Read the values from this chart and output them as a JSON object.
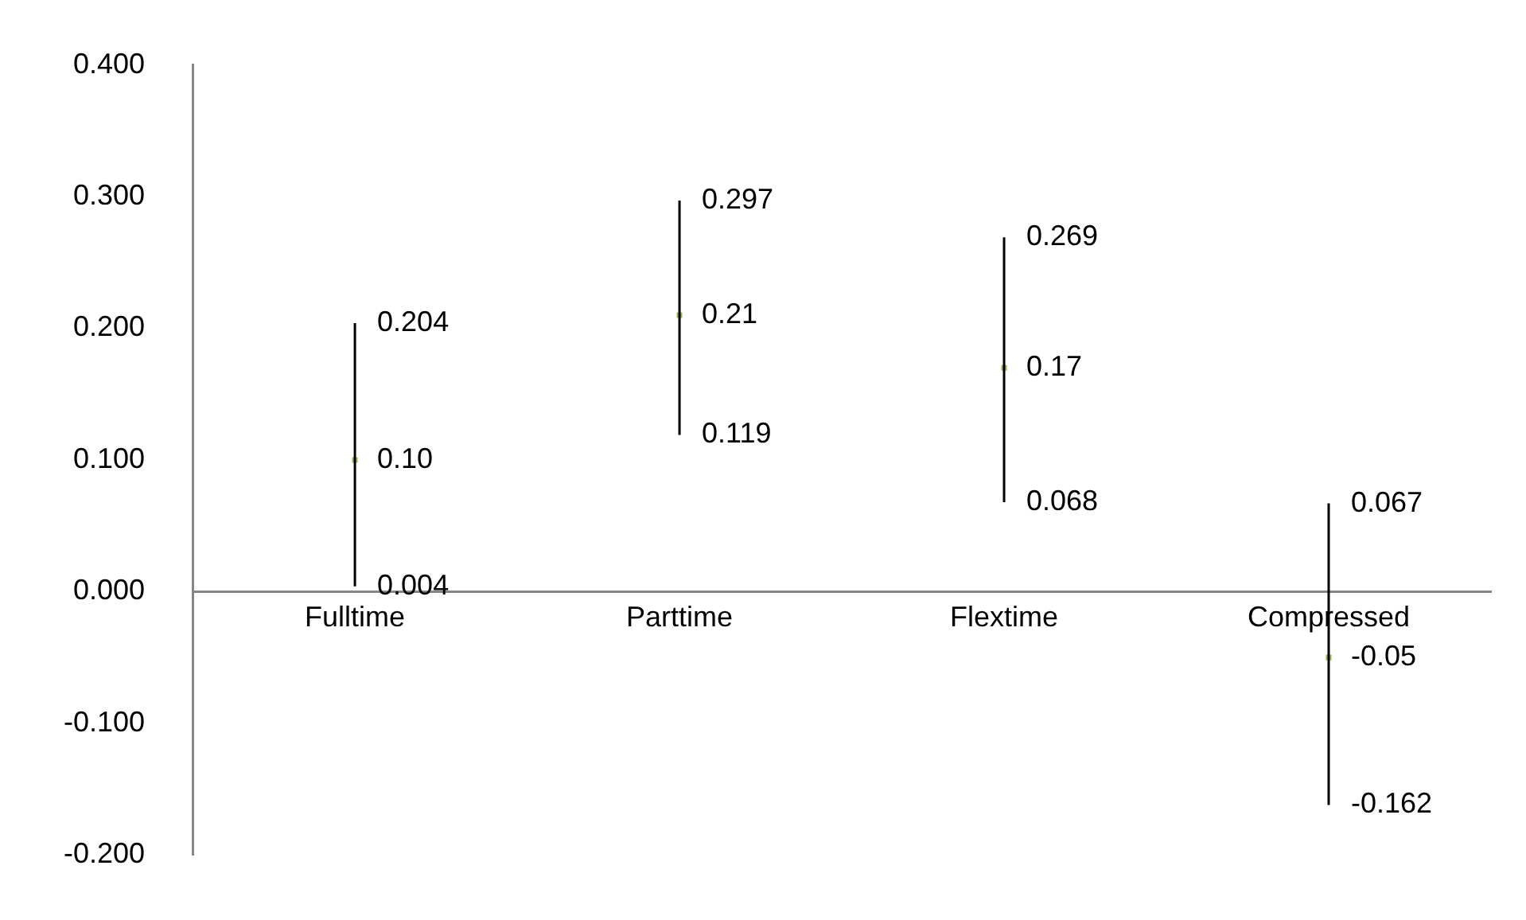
{
  "chart_data": {
    "type": "scatter",
    "categories": [
      "Fulltime",
      "Parttime",
      "Flextime",
      "Compressed"
    ],
    "values": [
      0.1,
      0.21,
      0.17,
      -0.05
    ],
    "value_labels": [
      "0.10",
      "0.21",
      "0.17",
      "-0.05"
    ],
    "errors": [
      [
        0.004,
        0.204
      ],
      [
        0.119,
        0.297
      ],
      [
        0.068,
        0.269
      ],
      [
        -0.162,
        0.067
      ]
    ],
    "color": "#9bbb59",
    "marker": "square",
    "grid": false,
    "legend": false,
    "ylim": [
      -0.2,
      0.4
    ],
    "yticks": [
      {
        "value": -0.2,
        "label": "-0.200"
      },
      {
        "value": -0.1,
        "label": "-0.100"
      },
      {
        "value": 0,
        "label": "0.000"
      },
      {
        "value": 0.1,
        "label": "0.100"
      },
      {
        "value": 0.2,
        "label": "0.200"
      },
      {
        "value": 0.3,
        "label": "0.300"
      },
      {
        "value": 0.4,
        "label": "0.400"
      }
    ],
    "annotations": [
      {
        "text": "0.204",
        "x": "Fulltime",
        "y": 0.204
      },
      {
        "text": "0.004",
        "x": "Fulltime",
        "y": 0.004
      },
      {
        "text": "0.297",
        "x": "Parttime",
        "y": 0.297
      },
      {
        "text": "0.119",
        "x": "Parttime",
        "y": 0.119
      },
      {
        "text": "0.269",
        "x": "Flextime",
        "y": 0.269
      },
      {
        "text": "0.068",
        "x": "Flextime",
        "y": 0.068
      },
      {
        "text": "0.067",
        "x": "Compressed",
        "y": 0.067
      },
      {
        "text": "-0.162",
        "x": "Compressed",
        "y": -0.162
      }
    ]
  }
}
